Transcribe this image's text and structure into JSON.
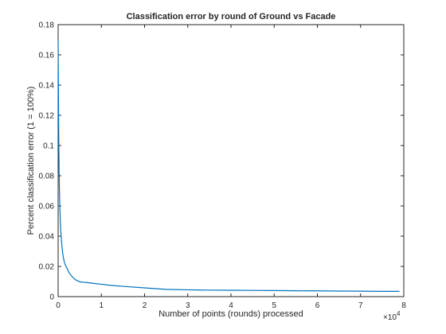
{
  "chart_data": {
    "type": "line",
    "title": "Classification error by round of Ground vs Facade",
    "xlabel": "Number of points (rounds) processed",
    "ylabel": "Percent classification error (1 = 100%)",
    "x_exponent_label": "×10",
    "x_exponent_power": "4",
    "xlim": [
      0,
      8
    ],
    "ylim": [
      0,
      0.18
    ],
    "x_ticks": [
      0,
      1,
      2,
      3,
      4,
      5,
      6,
      7,
      8
    ],
    "x_tick_labels": [
      "0",
      "1",
      "2",
      "3",
      "4",
      "5",
      "6",
      "7",
      "8"
    ],
    "y_ticks": [
      0,
      0.02,
      0.04,
      0.06,
      0.08,
      0.1,
      0.12,
      0.14,
      0.16,
      0.18
    ],
    "y_tick_labels": [
      "0",
      "0.02",
      "0.04",
      "0.06",
      "0.08",
      "0.1",
      "0.12",
      "0.14",
      "0.16",
      "0.18"
    ],
    "grid": false,
    "line_color": "#0072bd",
    "series": [
      {
        "x": [
          0,
          0.01,
          0.02,
          0.03,
          0.04,
          0.05,
          0.06,
          0.08,
          0.1,
          0.12,
          0.15,
          0.2,
          0.25,
          0.3,
          0.35,
          0.4,
          0.45,
          0.5,
          0.6,
          0.7,
          0.8,
          1.0,
          1.2,
          1.5,
          2.0,
          2.5,
          3.0,
          3.5,
          4.0,
          4.5,
          5.0,
          5.5,
          6.0,
          6.5,
          7.0,
          7.5,
          7.9
        ],
        "y": [
          0.17,
          0.12,
          0.09,
          0.07,
          0.058,
          0.05,
          0.044,
          0.036,
          0.03,
          0.026,
          0.022,
          0.019,
          0.016,
          0.014,
          0.0125,
          0.0112,
          0.0105,
          0.0098,
          0.0095,
          0.0092,
          0.0088,
          0.0082,
          0.0075,
          0.0068,
          0.0058,
          0.0048,
          0.0045,
          0.0043,
          0.0042,
          0.0041,
          0.004,
          0.0039,
          0.0038,
          0.0037,
          0.0036,
          0.0035,
          0.0035
        ]
      }
    ]
  }
}
